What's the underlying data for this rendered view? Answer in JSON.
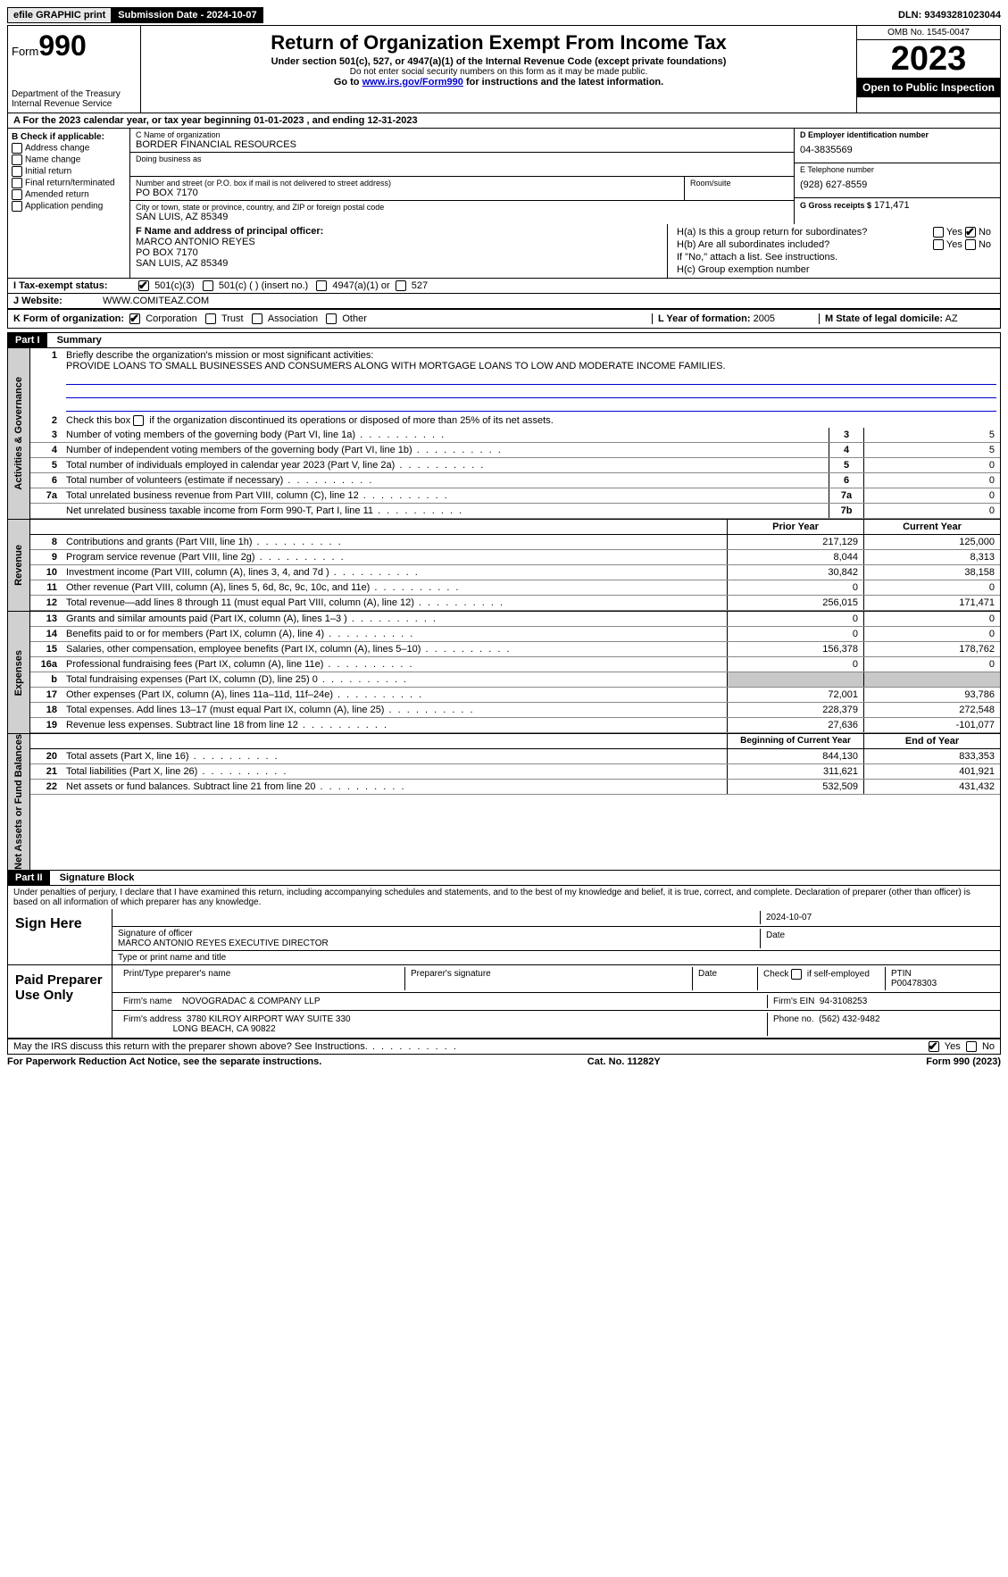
{
  "topbar": {
    "efile": "efile GRAPHIC print",
    "submission": "Submission Date - 2024-10-07",
    "dln": "DLN: 93493281023044"
  },
  "header": {
    "form_word": "Form",
    "form_num": "990",
    "title": "Return of Organization Exempt From Income Tax",
    "subtitle": "Under section 501(c), 527, or 4947(a)(1) of the Internal Revenue Code (except private foundations)",
    "ssn_note": "Do not enter social security numbers on this form as it may be made public.",
    "goto": "Go to ",
    "goto_link": "www.irs.gov/Form990",
    "goto_rest": " for instructions and the latest information.",
    "dept": "Department of the Treasury",
    "irs": "Internal Revenue Service",
    "omb": "OMB No. 1545-0047",
    "year": "2023",
    "open": "Open to Public Inspection"
  },
  "a_line": "A For the 2023 calendar year, or tax year beginning 01-01-2023   , and ending 12-31-2023",
  "b": {
    "title": "B Check if applicable:",
    "items": [
      "Address change",
      "Name change",
      "Initial return",
      "Final return/terminated",
      "Amended return",
      "Application pending"
    ]
  },
  "c": {
    "name_lbl": "C Name of organization",
    "name": "BORDER FINANCIAL RESOURCES",
    "dba_lbl": "Doing business as",
    "addr_lbl": "Number and street (or P.O. box if mail is not delivered to street address)",
    "room_lbl": "Room/suite",
    "addr": "PO BOX 7170",
    "city_lbl": "City or town, state or province, country, and ZIP or foreign postal code",
    "city": "SAN LUIS, AZ  85349"
  },
  "d": {
    "ein_lbl": "D Employer identification number",
    "ein": "04-3835569",
    "phone_lbl": "E Telephone number",
    "phone": "(928) 627-8559",
    "gross_lbl": "G Gross receipts $",
    "gross": "171,471"
  },
  "f": {
    "lbl": "F  Name and address of principal officer:",
    "name": "MARCO ANTONIO REYES",
    "addr1": "PO BOX 7170",
    "addr2": "SAN LUIS, AZ  85349"
  },
  "h": {
    "a": "H(a) Is this a group return for subordinates?",
    "b": "H(b) Are all subordinates included?",
    "note": "If \"No,\" attach a list. See instructions.",
    "c": "H(c) Group exemption number",
    "yes": "Yes",
    "no": "No"
  },
  "i": {
    "lbl": "I   Tax-exempt status:",
    "opts": [
      "501(c)(3)",
      "501(c) (  ) (insert no.)",
      "4947(a)(1) or",
      "527"
    ]
  },
  "j": {
    "lbl": "J   Website:",
    "val": "WWW.COMITEAZ.COM"
  },
  "k": {
    "lbl": "K Form of organization:",
    "opts": [
      "Corporation",
      "Trust",
      "Association",
      "Other"
    ]
  },
  "l": {
    "lbl": "L Year of formation:",
    "val": "2005"
  },
  "m": {
    "lbl": "M State of legal domicile:",
    "val": "AZ"
  },
  "part1": {
    "hdr": "Part I",
    "title": "Summary",
    "line1_lbl": "Briefly describe the organization's mission or most significant activities:",
    "mission": "PROVIDE LOANS TO SMALL BUSINESSES AND CONSUMERS ALONG WITH MORTGAGE LOANS TO LOW AND MODERATE INCOME FAMILIES.",
    "line2": "Check this box      if the organization discontinued its operations or disposed of more than 25% of its net assets.",
    "gov_lines": [
      {
        "n": "3",
        "d": "Number of voting members of the governing body (Part VI, line 1a)",
        "b": "3",
        "v": "5"
      },
      {
        "n": "4",
        "d": "Number of independent voting members of the governing body (Part VI, line 1b)",
        "b": "4",
        "v": "5"
      },
      {
        "n": "5",
        "d": "Total number of individuals employed in calendar year 2023 (Part V, line 2a)",
        "b": "5",
        "v": "0"
      },
      {
        "n": "6",
        "d": "Total number of volunteers (estimate if necessary)",
        "b": "6",
        "v": "0"
      },
      {
        "n": "7a",
        "d": "Total unrelated business revenue from Part VIII, column (C), line 12",
        "b": "7a",
        "v": "0"
      },
      {
        "n": "",
        "d": "Net unrelated business taxable income from Form 990-T, Part I, line 11",
        "b": "7b",
        "v": "0"
      }
    ],
    "col_prior": "Prior Year",
    "col_current": "Current Year",
    "rev_lines": [
      {
        "n": "8",
        "d": "Contributions and grants (Part VIII, line 1h)",
        "p": "217,129",
        "c": "125,000"
      },
      {
        "n": "9",
        "d": "Program service revenue (Part VIII, line 2g)",
        "p": "8,044",
        "c": "8,313"
      },
      {
        "n": "10",
        "d": "Investment income (Part VIII, column (A), lines 3, 4, and 7d )",
        "p": "30,842",
        "c": "38,158"
      },
      {
        "n": "11",
        "d": "Other revenue (Part VIII, column (A), lines 5, 6d, 8c, 9c, 10c, and 11e)",
        "p": "0",
        "c": "0"
      },
      {
        "n": "12",
        "d": "Total revenue—add lines 8 through 11 (must equal Part VIII, column (A), line 12)",
        "p": "256,015",
        "c": "171,471"
      }
    ],
    "exp_lines": [
      {
        "n": "13",
        "d": "Grants and similar amounts paid (Part IX, column (A), lines 1–3 )",
        "p": "0",
        "c": "0"
      },
      {
        "n": "14",
        "d": "Benefits paid to or for members (Part IX, column (A), line 4)",
        "p": "0",
        "c": "0"
      },
      {
        "n": "15",
        "d": "Salaries, other compensation, employee benefits (Part IX, column (A), lines 5–10)",
        "p": "156,378",
        "c": "178,762"
      },
      {
        "n": "16a",
        "d": "Professional fundraising fees (Part IX, column (A), line 11e)",
        "p": "0",
        "c": "0"
      },
      {
        "n": "b",
        "d": "Total fundraising expenses (Part IX, column (D), line 25) 0",
        "p": "",
        "c": "",
        "shade": true
      },
      {
        "n": "17",
        "d": "Other expenses (Part IX, column (A), lines 11a–11d, 11f–24e)",
        "p": "72,001",
        "c": "93,786"
      },
      {
        "n": "18",
        "d": "Total expenses. Add lines 13–17 (must equal Part IX, column (A), line 25)",
        "p": "228,379",
        "c": "272,548"
      },
      {
        "n": "19",
        "d": "Revenue less expenses. Subtract line 18 from line 12",
        "p": "27,636",
        "c": "-101,077"
      }
    ],
    "col_begin": "Beginning of Current Year",
    "col_end": "End of Year",
    "net_lines": [
      {
        "n": "20",
        "d": "Total assets (Part X, line 16)",
        "p": "844,130",
        "c": "833,353"
      },
      {
        "n": "21",
        "d": "Total liabilities (Part X, line 26)",
        "p": "311,621",
        "c": "401,921"
      },
      {
        "n": "22",
        "d": "Net assets or fund balances. Subtract line 21 from line 20",
        "p": "532,509",
        "c": "431,432"
      }
    ],
    "vtabs": {
      "gov": "Activities & Governance",
      "rev": "Revenue",
      "exp": "Expenses",
      "net": "Net Assets or Fund Balances"
    }
  },
  "part2": {
    "hdr": "Part II",
    "title": "Signature Block",
    "decl": "Under penalties of perjury, I declare that I have examined this return, including accompanying schedules and statements, and to the best of my knowledge and belief, it is true, correct, and complete. Declaration of preparer (other than officer) is based on all information of which preparer has any knowledge.",
    "sign_here": "Sign Here",
    "sig_officer_lbl": "Signature of officer",
    "sig_officer": "MARCO ANTONIO REYES  EXECUTIVE DIRECTOR",
    "type_name_lbl": "Type or print name and title",
    "date_lbl": "Date",
    "date": "2024-10-07",
    "paid": "Paid Preparer Use Only",
    "prep_name_lbl": "Print/Type preparer's name",
    "prep_sig_lbl": "Preparer's signature",
    "check_self": "Check         if self-employed",
    "ptin_lbl": "PTIN",
    "ptin": "P00478303",
    "firm_name_lbl": "Firm's name",
    "firm_name": "NOVOGRADAC & COMPANY LLP",
    "firm_ein_lbl": "Firm's EIN",
    "firm_ein": "94-3108253",
    "firm_addr_lbl": "Firm's address",
    "firm_addr1": "3780 KILROY AIRPORT WAY SUITE 330",
    "firm_addr2": "LONG BEACH, CA  90822",
    "phone_lbl": "Phone no.",
    "phone": "(562) 432-9482",
    "discuss": "May the IRS discuss this return with the preparer shown above? See Instructions."
  },
  "footer": {
    "left": "For Paperwork Reduction Act Notice, see the separate instructions.",
    "center": "Cat. No. 11282Y",
    "right": "Form 990 (2023)"
  }
}
